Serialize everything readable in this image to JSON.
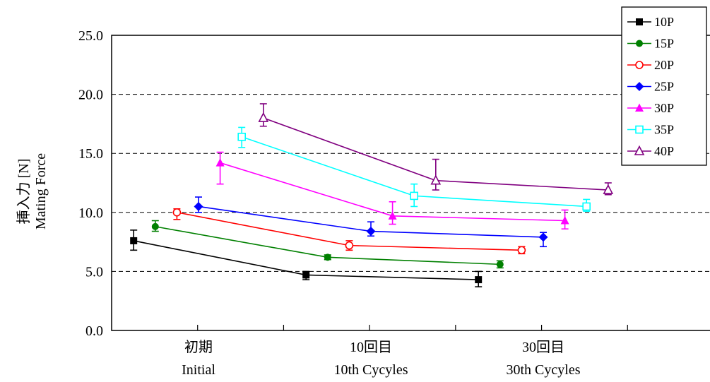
{
  "chart_data": {
    "type": "line",
    "ylim": [
      0,
      25
    ],
    "yticks": [
      "0.0",
      "5.0",
      "10.0",
      "15.0",
      "20.0",
      "25.0"
    ],
    "ylabel_lines": [
      "挿入力 [N]",
      "Mating Force"
    ],
    "categories": [
      {
        "jp": "初期",
        "en": "Initial"
      },
      {
        "jp": "10回目",
        "en": "10th Cycyles"
      },
      {
        "jp": "30回目",
        "en": "30th Cycyles"
      }
    ],
    "grid": "dashed horizontal",
    "legend_position": "top-right",
    "series": [
      {
        "name": "10P",
        "color": "#000000",
        "marker": "square-filled",
        "values": [
          7.6,
          4.7,
          4.3
        ],
        "err_low": [
          6.8,
          4.3,
          3.7
        ],
        "err_high": [
          8.5,
          5.0,
          5.0
        ]
      },
      {
        "name": "15P",
        "color": "#008000",
        "marker": "circle-filled",
        "values": [
          8.8,
          6.2,
          5.6
        ],
        "err_low": [
          8.4,
          6.0,
          5.3
        ],
        "err_high": [
          9.3,
          6.4,
          5.9
        ]
      },
      {
        "name": "20P",
        "color": "#ff0000",
        "marker": "circle-open",
        "values": [
          10.0,
          7.2,
          6.8
        ],
        "err_low": [
          9.4,
          6.8,
          6.5
        ],
        "err_high": [
          10.3,
          7.6,
          7.1
        ]
      },
      {
        "name": "25P",
        "color": "#0000ff",
        "marker": "diamond-filled",
        "values": [
          10.5,
          8.4,
          7.9
        ],
        "err_low": [
          10.0,
          8.0,
          7.1
        ],
        "err_high": [
          11.3,
          9.2,
          8.3
        ]
      },
      {
        "name": "30P",
        "color": "#ff00ff",
        "marker": "triangle-filled",
        "values": [
          14.2,
          9.7,
          9.3
        ],
        "err_low": [
          12.4,
          9.0,
          8.6
        ],
        "err_high": [
          15.1,
          10.9,
          10.2
        ]
      },
      {
        "name": "35P",
        "color": "#00ffff",
        "marker": "square-open",
        "values": [
          16.4,
          11.4,
          10.5
        ],
        "err_low": [
          15.5,
          10.5,
          10.1
        ],
        "err_high": [
          17.2,
          12.4,
          11.1
        ]
      },
      {
        "name": "40P",
        "color": "#800080",
        "marker": "triangle-open",
        "values": [
          18.0,
          12.7,
          11.9
        ],
        "err_low": [
          17.3,
          11.9,
          11.5
        ],
        "err_high": [
          19.2,
          14.5,
          12.5
        ]
      }
    ]
  }
}
